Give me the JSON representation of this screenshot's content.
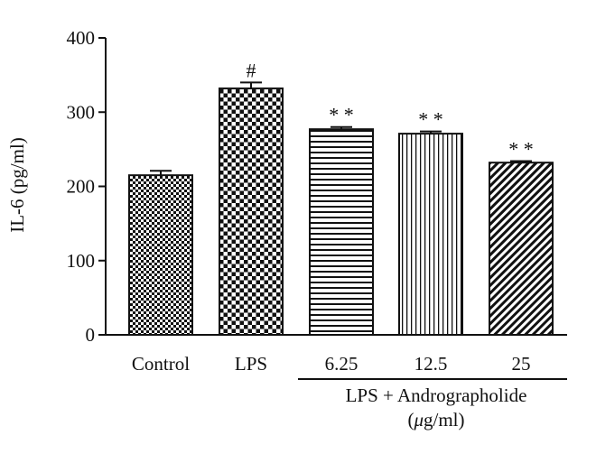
{
  "chart_data": {
    "type": "bar",
    "categories": [
      "Control",
      "LPS",
      "6.25",
      "12.5",
      "25"
    ],
    "values": [
      215,
      332,
      277,
      271,
      232
    ],
    "errors": [
      6,
      8,
      3,
      3,
      2
    ],
    "annotations": [
      "",
      "#",
      "**",
      "**",
      "**"
    ],
    "patterns": [
      "checker-small",
      "checker-large",
      "horizontal-lines",
      "vertical-lines",
      "diagonal-lines"
    ],
    "title": "",
    "xlabel": "",
    "ylabel": "IL-6 (pg/ml)",
    "ylim": [
      0,
      400
    ],
    "yticks": [
      0,
      100,
      200,
      300,
      400
    ],
    "group_label": {
      "line1": "LPS + Andrographolide",
      "unit_symbol": "μ",
      "unit_rest": "g/ml)",
      "unit_open": "(",
      "categories_covered": [
        "6.25",
        "12.5",
        "25"
      ]
    },
    "grid": false,
    "legend": "none",
    "colors": {
      "ink": "#111111",
      "background": "#ffffff"
    }
  }
}
